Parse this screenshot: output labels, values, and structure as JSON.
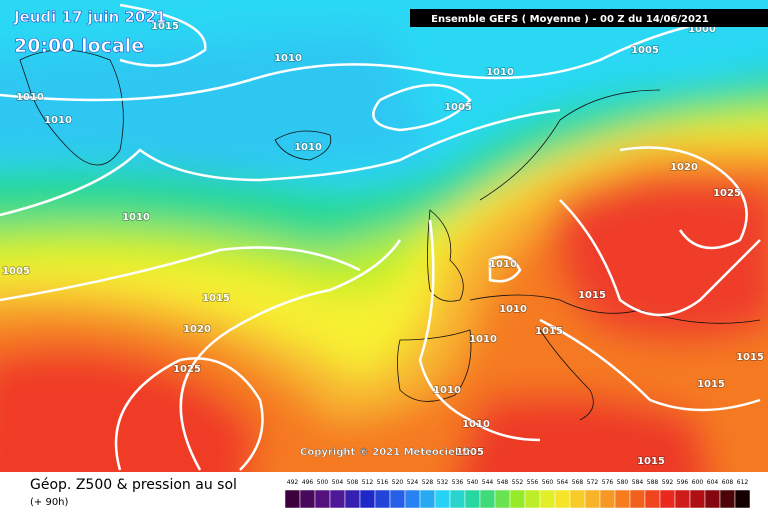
{
  "header": {
    "date": "Jeudi 17 juin 2021",
    "time": "20:00 locale",
    "model": "Ensemble GEFS  ( Moyenne )  -  00 Z du 14/06/2021"
  },
  "isobar_labels": [
    "1015",
    "1010",
    "1010",
    "1005",
    "1000",
    "1005",
    "1010",
    "1010",
    "1010",
    "1020",
    "1025",
    "1010",
    "1005",
    "1010",
    "1015",
    "1015",
    "1010",
    "1020",
    "1015",
    "1010",
    "1015",
    "1025",
    "1015",
    "1010",
    "1010",
    "1005",
    "1015"
  ],
  "copyright": "Copyright © 2021 Meteociel.fr",
  "legend": {
    "title": "Géop. Z500 & pression au sol",
    "lead": "(+ 90h)",
    "scale": [
      492,
      496,
      500,
      504,
      508,
      512,
      516,
      520,
      524,
      528,
      532,
      536,
      540,
      544,
      548,
      552,
      556,
      560,
      564,
      568,
      572,
      576,
      580,
      584,
      588,
      592,
      596,
      600,
      604,
      608,
      612
    ]
  }
}
